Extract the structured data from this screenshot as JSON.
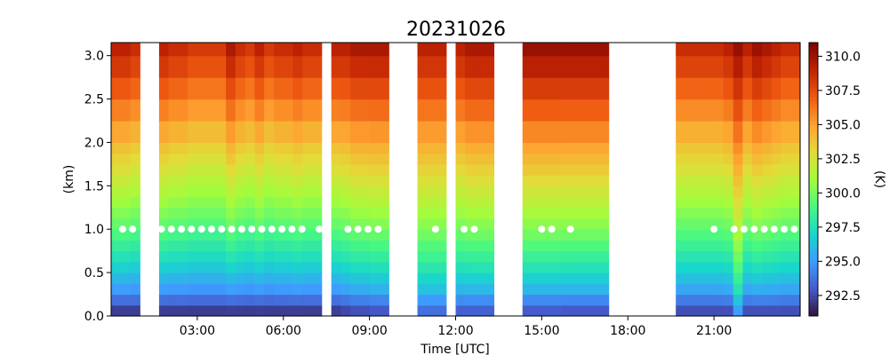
{
  "chart_data": {
    "type": "heatmap",
    "title": "20231026",
    "xlabel": "Time [UTC]",
    "ylabel": "(km)",
    "colorbar_label": "(K)",
    "xlim_hours": [
      0.0,
      24.0
    ],
    "ylim_km": [
      0.0,
      3.15
    ],
    "x_ticks": [
      {
        "hour": 3,
        "label": "03:00"
      },
      {
        "hour": 6,
        "label": "06:00"
      },
      {
        "hour": 9,
        "label": "09:00"
      },
      {
        "hour": 12,
        "label": "12:00"
      },
      {
        "hour": 15,
        "label": "15:00"
      },
      {
        "hour": 18,
        "label": "18:00"
      },
      {
        "hour": 21,
        "label": "21:00"
      }
    ],
    "y_ticks": [
      {
        "value": 0.0,
        "label": "0.0"
      },
      {
        "value": 0.5,
        "label": "0.5"
      },
      {
        "value": 1.0,
        "label": "1.0"
      },
      {
        "value": 1.5,
        "label": "1.5"
      },
      {
        "value": 2.0,
        "label": "2.0"
      },
      {
        "value": 2.5,
        "label": "2.5"
      },
      {
        "value": 3.0,
        "label": "3.0"
      }
    ],
    "colorbar": {
      "vmin": 291.0,
      "vmax": 311.0,
      "colormap": "turbo",
      "ticks": [
        {
          "value": 292.5,
          "label": "292.5"
        },
        {
          "value": 295.0,
          "label": "295.0"
        },
        {
          "value": 297.5,
          "label": "297.5"
        },
        {
          "value": 300.0,
          "label": "300.0"
        },
        {
          "value": 302.5,
          "label": "302.5"
        },
        {
          "value": 305.0,
          "label": "305.0"
        },
        {
          "value": 307.5,
          "label": "307.5"
        },
        {
          "value": 310.0,
          "label": "310.0"
        }
      ]
    },
    "levels_km": [
      0.0,
      0.125,
      0.25,
      0.375,
      0.5,
      0.625,
      0.75,
      0.875,
      1.0,
      1.125,
      1.25,
      1.375,
      1.5,
      1.625,
      1.75,
      1.875,
      2.0,
      2.25,
      2.5,
      2.75,
      3.0,
      3.15
    ],
    "profile_model": {
      "description": "column temperature T(z) = surface + (top - surface) * shape(z/3.15)",
      "shape_levels": [
        0.0,
        0.05,
        0.1,
        0.2,
        0.3,
        0.45,
        0.6,
        0.75,
        0.9,
        1.0
      ],
      "shape_values": [
        0.0,
        0.1,
        0.2,
        0.32,
        0.42,
        0.55,
        0.68,
        0.8,
        0.92,
        1.0
      ]
    },
    "data_blocks": [
      {
        "start": 0.0,
        "end": 0.33,
        "surface_K": 291.5,
        "top_K": 309.5
      },
      {
        "start": 0.33,
        "end": 0.67,
        "surface_K": 291.5,
        "top_K": 309.5
      },
      {
        "start": 0.67,
        "end": 1.0,
        "surface_K": 291.5,
        "top_K": 309.0
      },
      {
        "start": 1.67,
        "end": 2.0,
        "surface_K": 291.5,
        "top_K": 309.5
      },
      {
        "start": 2.0,
        "end": 2.33,
        "surface_K": 291.5,
        "top_K": 309.0
      },
      {
        "start": 2.33,
        "end": 2.67,
        "surface_K": 291.5,
        "top_K": 309.0
      },
      {
        "start": 2.67,
        "end": 3.0,
        "surface_K": 291.5,
        "top_K": 308.5
      },
      {
        "start": 3.0,
        "end": 3.33,
        "surface_K": 291.5,
        "top_K": 308.5
      },
      {
        "start": 3.33,
        "end": 3.67,
        "surface_K": 291.5,
        "top_K": 308.5
      },
      {
        "start": 3.67,
        "end": 4.0,
        "surface_K": 291.5,
        "top_K": 308.5
      },
      {
        "start": 4.0,
        "end": 4.33,
        "surface_K": 291.5,
        "top_K": 310.0
      },
      {
        "start": 4.33,
        "end": 4.67,
        "surface_K": 291.5,
        "top_K": 309.0
      },
      {
        "start": 4.67,
        "end": 5.0,
        "surface_K": 291.5,
        "top_K": 308.5
      },
      {
        "start": 5.0,
        "end": 5.33,
        "surface_K": 291.5,
        "top_K": 309.5
      },
      {
        "start": 5.33,
        "end": 5.67,
        "surface_K": 291.5,
        "top_K": 308.5
      },
      {
        "start": 5.67,
        "end": 6.0,
        "surface_K": 291.5,
        "top_K": 309.0
      },
      {
        "start": 6.0,
        "end": 6.33,
        "surface_K": 291.5,
        "top_K": 309.0
      },
      {
        "start": 6.33,
        "end": 6.67,
        "surface_K": 291.5,
        "top_K": 309.5
      },
      {
        "start": 6.67,
        "end": 7.0,
        "surface_K": 291.5,
        "top_K": 309.0
      },
      {
        "start": 7.0,
        "end": 7.33,
        "surface_K": 291.5,
        "top_K": 309.0
      },
      {
        "start": 7.67,
        "end": 8.0,
        "surface_K": 291.5,
        "top_K": 309.5
      },
      {
        "start": 8.0,
        "end": 8.33,
        "surface_K": 291.8,
        "top_K": 309.5
      },
      {
        "start": 8.33,
        "end": 8.67,
        "surface_K": 292.0,
        "top_K": 310.0
      },
      {
        "start": 8.67,
        "end": 9.0,
        "surface_K": 292.0,
        "top_K": 310.0
      },
      {
        "start": 9.0,
        "end": 9.67,
        "surface_K": 292.2,
        "top_K": 310.0
      },
      {
        "start": 10.67,
        "end": 11.0,
        "surface_K": 293.0,
        "top_K": 309.5
      },
      {
        "start": 11.0,
        "end": 11.33,
        "surface_K": 293.0,
        "top_K": 309.5
      },
      {
        "start": 11.33,
        "end": 11.67,
        "surface_K": 293.0,
        "top_K": 309.5
      },
      {
        "start": 12.0,
        "end": 12.33,
        "surface_K": 292.5,
        "top_K": 309.5
      },
      {
        "start": 12.33,
        "end": 12.67,
        "surface_K": 292.5,
        "top_K": 310.0
      },
      {
        "start": 12.67,
        "end": 13.33,
        "surface_K": 292.5,
        "top_K": 310.0
      },
      {
        "start": 14.33,
        "end": 15.67,
        "surface_K": 292.3,
        "top_K": 310.5
      },
      {
        "start": 15.67,
        "end": 17.33,
        "surface_K": 292.2,
        "top_K": 310.5
      },
      {
        "start": 19.67,
        "end": 21.0,
        "surface_K": 292.0,
        "top_K": 309.0
      },
      {
        "start": 21.0,
        "end": 21.33,
        "surface_K": 292.0,
        "top_K": 309.0
      },
      {
        "start": 21.33,
        "end": 21.67,
        "surface_K": 292.0,
        "top_K": 309.5
      },
      {
        "start": 21.67,
        "end": 22.0,
        "surface_K": 292.0,
        "top_K": 308.0,
        "warm_column_K": 2.5
      },
      {
        "start": 22.0,
        "end": 22.33,
        "surface_K": 292.0,
        "top_K": 309.5
      },
      {
        "start": 22.33,
        "end": 22.67,
        "surface_K": 292.0,
        "top_K": 310.5
      },
      {
        "start": 22.67,
        "end": 23.0,
        "surface_K": 292.0,
        "top_K": 310.0
      },
      {
        "start": 23.0,
        "end": 23.33,
        "surface_K": 292.0,
        "top_K": 309.5
      },
      {
        "start": 23.33,
        "end": 24.0,
        "surface_K": 292.0,
        "top_K": 309.0
      }
    ],
    "markers": {
      "level_km": 1.0,
      "color": "#ffffff",
      "hours": [
        0.4,
        0.75,
        1.75,
        2.1,
        2.45,
        2.8,
        3.15,
        3.5,
        3.85,
        4.2,
        4.55,
        4.9,
        5.25,
        5.6,
        5.95,
        6.3,
        6.65,
        7.25,
        8.25,
        8.6,
        8.95,
        9.3,
        11.3,
        12.3,
        12.65,
        15.0,
        15.35,
        16.0,
        21.0,
        21.7,
        22.05,
        22.4,
        22.75,
        23.1,
        23.45,
        23.8
      ]
    }
  }
}
